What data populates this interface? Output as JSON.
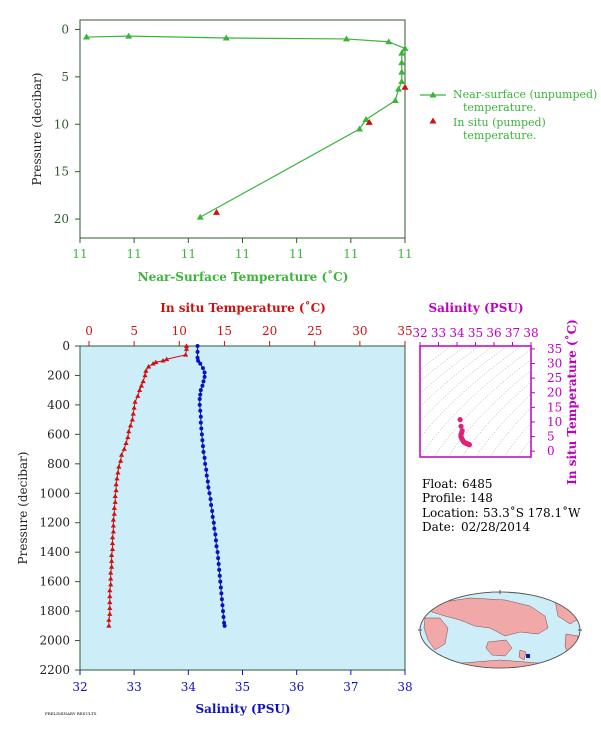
{
  "colors": {
    "green": "#3cb43c",
    "red": "#d01010",
    "blue": "#1010c0",
    "magenta": "#c000c0",
    "panel_bg": "#cdeef8",
    "axis_dark": "#2e5a2e"
  },
  "top_chart": {
    "ylabel": "Pressure (decibar)",
    "xlabel": "Near-Surface Temperature (˚C)",
    "xticks": [
      "11",
      "11",
      "11",
      "11",
      "11",
      "11",
      "11"
    ],
    "yticks": [
      "0",
      "5",
      "10",
      "15",
      "20"
    ],
    "legend": {
      "line1": "Near-surface (unpumped)",
      "line2": "temperature.",
      "line3": "In situ (pumped)",
      "line4": "temperature."
    }
  },
  "main_chart": {
    "top_axis_label": "In situ Temperature (˚C)",
    "bottom_axis_label": "Salinity (PSU)",
    "ylabel": "Pressure (decibar)",
    "temp_ticks": [
      "0",
      "5",
      "10",
      "15",
      "20",
      "25",
      "30",
      "35"
    ],
    "sal_ticks": [
      "32",
      "33",
      "34",
      "35",
      "36",
      "37",
      "38"
    ],
    "p_ticks": [
      "0",
      "200",
      "400",
      "600",
      "800",
      "1000",
      "1200",
      "1400",
      "1600",
      "1800",
      "2000",
      "2200"
    ]
  },
  "ts_diagram": {
    "title": "Salinity (PSU)",
    "ylabel": "In situ Temperature (˚C)",
    "xticks": [
      "32",
      "33",
      "34",
      "35",
      "36",
      "37",
      "38"
    ],
    "yticks": [
      "35",
      "30",
      "25",
      "20",
      "15",
      "10",
      "5",
      "0"
    ]
  },
  "info": {
    "float_label": "Float:",
    "float_value": "6485",
    "profile_label": "Profile:",
    "profile_value": "148",
    "location_label": "Location:",
    "location_value": "53.3˚S 178.1˚W",
    "date_label": "Date:",
    "date_value": "02/28/2014"
  },
  "footer_text": "PRELIMINARY RESULTS",
  "chart_data": [
    {
      "type": "line",
      "x_axis": "near-surface temperature",
      "y_axis": "pressure (decibar)",
      "ylim": [
        22,
        -1
      ],
      "series": [
        {
          "name": "Near-surface (unpumped) temperature.",
          "points": [
            [
              0.02,
              0.8
            ],
            [
              0.15,
              0.7
            ],
            [
              0.45,
              0.9
            ],
            [
              0.82,
              1.0
            ],
            [
              0.95,
              1.3
            ],
            [
              1.0,
              2.0
            ],
            [
              0.99,
              2.5
            ],
            [
              0.99,
              3.5
            ],
            [
              0.99,
              4.5
            ],
            [
              0.99,
              5.5
            ],
            [
              0.98,
              6.3
            ],
            [
              0.97,
              7.5
            ],
            [
              0.88,
              9.5
            ],
            [
              0.86,
              10.5
            ],
            [
              0.37,
              19.8
            ]
          ]
        },
        {
          "name": "In situ (pumped) temperature.",
          "points": [
            [
              1.0,
              6.1
            ],
            [
              0.89,
              9.8
            ],
            [
              0.42,
              19.3
            ]
          ]
        }
      ]
    },
    {
      "type": "scatter",
      "y_axis": "Pressure (decibar)",
      "ylim": [
        0,
        2200
      ],
      "temp_xlim": [
        -1,
        35
      ],
      "sal_xlim": [
        32,
        38
      ],
      "temperature_series": {
        "name": "In situ Temperature (˚C)",
        "points": [
          [
            10.8,
            0
          ],
          [
            10.8,
            20
          ],
          [
            10.7,
            60
          ],
          [
            8.6,
            90
          ],
          [
            8.2,
            100
          ],
          [
            7.4,
            110
          ],
          [
            7.1,
            120
          ],
          [
            6.6,
            140
          ],
          [
            6.3,
            170
          ],
          [
            6.2,
            200
          ],
          [
            6.0,
            240
          ],
          [
            5.8,
            270
          ],
          [
            5.6,
            300
          ],
          [
            5.4,
            340
          ],
          [
            5.1,
            380
          ],
          [
            5.0,
            420
          ],
          [
            4.9,
            460
          ],
          [
            4.8,
            500
          ],
          [
            4.6,
            540
          ],
          [
            4.4,
            580
          ],
          [
            4.3,
            620
          ],
          [
            4.1,
            660
          ],
          [
            3.9,
            700
          ],
          [
            3.6,
            740
          ],
          [
            3.5,
            780
          ],
          [
            3.3,
            820
          ],
          [
            3.2,
            860
          ],
          [
            3.1,
            900
          ],
          [
            3.0,
            940
          ],
          [
            3.0,
            980
          ],
          [
            2.9,
            1020
          ],
          [
            2.9,
            1060
          ],
          [
            2.8,
            1100
          ],
          [
            2.8,
            1140
          ],
          [
            2.7,
            1180
          ],
          [
            2.7,
            1220
          ],
          [
            2.7,
            1260
          ],
          [
            2.6,
            1300
          ],
          [
            2.6,
            1340
          ],
          [
            2.6,
            1380
          ],
          [
            2.5,
            1420
          ],
          [
            2.5,
            1460
          ],
          [
            2.5,
            1500
          ],
          [
            2.4,
            1540
          ],
          [
            2.4,
            1580
          ],
          [
            2.4,
            1620
          ],
          [
            2.3,
            1660
          ],
          [
            2.3,
            1700
          ],
          [
            2.3,
            1740
          ],
          [
            2.3,
            1780
          ],
          [
            2.3,
            1820
          ],
          [
            2.2,
            1860
          ],
          [
            2.2,
            1900
          ]
        ]
      },
      "salinity_series": {
        "name": "Salinity (PSU)",
        "points": [
          [
            34.17,
            0
          ],
          [
            34.17,
            40
          ],
          [
            34.17,
            80
          ],
          [
            34.18,
            100
          ],
          [
            34.22,
            120
          ],
          [
            34.27,
            150
          ],
          [
            34.3,
            180
          ],
          [
            34.3,
            210
          ],
          [
            34.28,
            240
          ],
          [
            34.26,
            270
          ],
          [
            34.23,
            300
          ],
          [
            34.22,
            330
          ],
          [
            34.21,
            360
          ],
          [
            34.21,
            400
          ],
          [
            34.22,
            440
          ],
          [
            34.23,
            480
          ],
          [
            34.23,
            520
          ],
          [
            34.24,
            560
          ],
          [
            34.25,
            600
          ],
          [
            34.26,
            640
          ],
          [
            34.27,
            680
          ],
          [
            34.28,
            720
          ],
          [
            34.3,
            760
          ],
          [
            34.31,
            800
          ],
          [
            34.33,
            840
          ],
          [
            34.34,
            880
          ],
          [
            34.36,
            920
          ],
          [
            34.37,
            960
          ],
          [
            34.39,
            1000
          ],
          [
            34.41,
            1040
          ],
          [
            34.42,
            1080
          ],
          [
            34.44,
            1120
          ],
          [
            34.45,
            1160
          ],
          [
            34.47,
            1200
          ],
          [
            34.48,
            1240
          ],
          [
            34.5,
            1280
          ],
          [
            34.51,
            1320
          ],
          [
            34.52,
            1360
          ],
          [
            34.54,
            1400
          ],
          [
            34.55,
            1440
          ],
          [
            34.56,
            1480
          ],
          [
            34.57,
            1520
          ],
          [
            34.58,
            1560
          ],
          [
            34.59,
            1600
          ],
          [
            34.6,
            1640
          ],
          [
            34.61,
            1680
          ],
          [
            34.62,
            1720
          ],
          [
            34.63,
            1760
          ],
          [
            34.64,
            1800
          ],
          [
            34.65,
            1840
          ],
          [
            34.66,
            1880
          ],
          [
            34.67,
            1900
          ]
        ]
      }
    },
    {
      "type": "scatter",
      "x_axis": "Salinity (PSU)",
      "y_axis": "In situ Temperature (˚C)",
      "xlim": [
        32,
        38
      ],
      "ylim": [
        -2,
        36
      ],
      "points": [
        [
          34.17,
          10.8
        ],
        [
          34.22,
          8.5
        ],
        [
          34.28,
          7.0
        ],
        [
          34.25,
          6.3
        ],
        [
          34.22,
          5.8
        ],
        [
          34.21,
          5.2
        ],
        [
          34.23,
          4.8
        ],
        [
          34.25,
          4.4
        ],
        [
          34.28,
          4.0
        ],
        [
          34.32,
          3.6
        ],
        [
          34.36,
          3.2
        ],
        [
          34.4,
          3.0
        ],
        [
          34.45,
          2.8
        ],
        [
          34.5,
          2.7
        ],
        [
          34.55,
          2.5
        ],
        [
          34.6,
          2.4
        ],
        [
          34.65,
          2.3
        ],
        [
          34.67,
          2.2
        ]
      ]
    }
  ]
}
